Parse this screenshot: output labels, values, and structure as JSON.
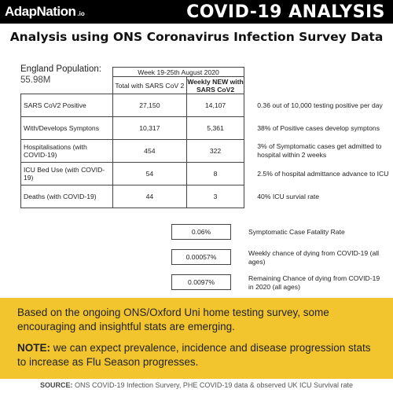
{
  "header": {
    "brand_main": "AdapNation",
    "brand_suffix": ".io",
    "title": "COVID-19 ANALYSIS"
  },
  "subtitle": "Analysis using ONS Coronavirus Infection Survey Data",
  "population": {
    "label": "England Population:",
    "value": "55.98M"
  },
  "table": {
    "week": "Week 19-25th August 2020",
    "col_total": "Total with SARS CoV 2",
    "col_new": "Weekly NEW with SARS CoV2",
    "rows": [
      {
        "label": "SARS CoV2 Positive",
        "total": "27,150",
        "new": "14,107",
        "note": "0.36 out of 10,000 testing positive per day"
      },
      {
        "label": "With/Develops Symptons",
        "total": "10,317",
        "new": "5,361",
        "note": "38% of Positive cases develop symptons"
      },
      {
        "label": "Hospitalisations (with COVID-19)",
        "total": "454",
        "new": "322",
        "note": "3% of Symptomatic cases get admitted to hospital within 2 weeks"
      },
      {
        "label": "ICU Bed Use (with COVID-19)",
        "total": "54",
        "new": "8",
        "note": "2.5% of hospital admittance advance to ICU"
      },
      {
        "label": "Deaths (with COVID-19)",
        "total": "44",
        "new": "3",
        "note": "40% ICU survial rate"
      }
    ]
  },
  "stats": [
    {
      "value": "0.06%",
      "note": "Symptomatic Case Fatality Rate"
    },
    {
      "value": "0.00057%",
      "note": "Weekly chance of dying from COVID-19 (all ages)"
    },
    {
      "value": "0.0097%",
      "note": "Remaining Chance of dying from COVID-19 in 2020 (all ages)"
    }
  ],
  "callout": {
    "paragraph1": "Based on the ongoing ONS/Oxford Uni home testing survey, some encouraging and insightful stats are emerging.",
    "note_label": "NOTE:",
    "note_text": " we can expect prevalence, incidence and disease progression stats to increase as Flu Season progresses."
  },
  "source": {
    "label": "SOURCE:",
    "text": " ONS COVID-19 Infection Survery, PHE COVID-19 data & observed UK ICU Survival rate"
  }
}
